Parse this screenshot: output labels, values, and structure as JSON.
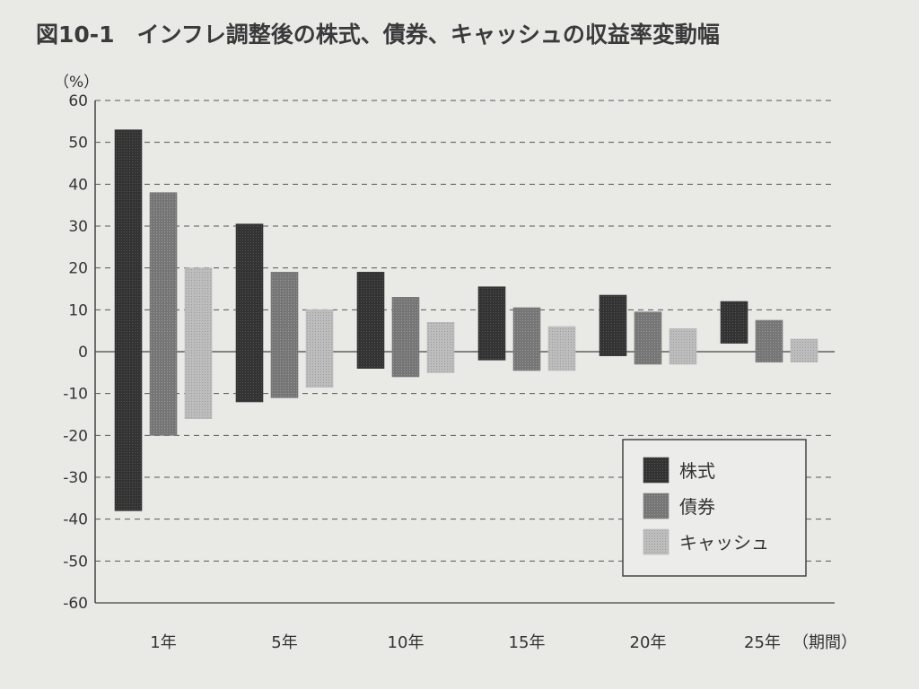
{
  "chart_data": {
    "type": "bar",
    "subtype": "floating-range",
    "title": "図10-1　インフレ調整後の株式、債券、キャッシュの収益率変動幅",
    "ylabel": "（%）",
    "xlabel_suffix": "（期間）",
    "ylim": [
      -60,
      60
    ],
    "yticks": [
      60,
      50,
      40,
      30,
      20,
      10,
      0,
      -10,
      -20,
      -30,
      -40,
      -50,
      -60
    ],
    "grid": "dashed-horizontal",
    "legend_position": "bottom-right",
    "categories": [
      "1年",
      "5年",
      "10年",
      "15年",
      "20年",
      "25年"
    ],
    "series": [
      {
        "name": "株式",
        "color": "#3a3a3a",
        "ranges": [
          [
            -38,
            53
          ],
          [
            -12,
            30.5
          ],
          [
            -4,
            19
          ],
          [
            -2,
            15.5
          ],
          [
            -1,
            13.5
          ],
          [
            2,
            12
          ]
        ]
      },
      {
        "name": "債券",
        "color": "#7a7a7a",
        "ranges": [
          [
            -20,
            38
          ],
          [
            -11,
            19
          ],
          [
            -6,
            13
          ],
          [
            -4.5,
            10.5
          ],
          [
            -3,
            9.5
          ],
          [
            -2.5,
            7.5
          ]
        ]
      },
      {
        "name": "キャッシュ",
        "color": "#b8b8b8",
        "ranges": [
          [
            -16,
            20
          ],
          [
            -8.5,
            10
          ],
          [
            -5,
            7
          ],
          [
            -4.5,
            6
          ],
          [
            -3,
            5.5
          ],
          [
            -2.5,
            3
          ]
        ]
      }
    ]
  }
}
